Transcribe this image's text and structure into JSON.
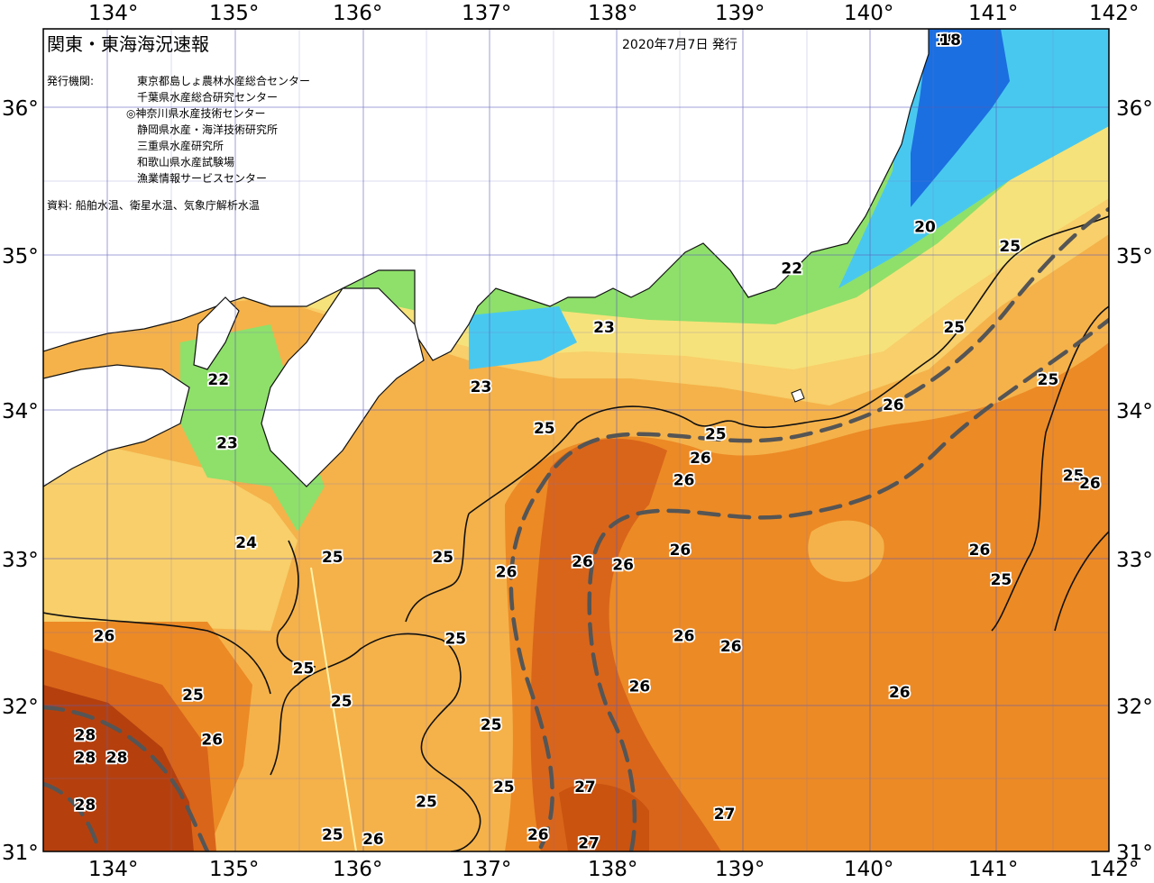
{
  "title": "関東・東海海況速報",
  "issue_date": "2020年7月7日 発行",
  "issuers_label": "発行機関:",
  "issuers": [
    "東京都島しょ農林水産総合センター",
    "千葉県水産総合研究センター",
    "◎神奈川県水産技術センター",
    "静岡県水産・海洋技術研究所",
    "三重県水産研究所",
    "和歌山県水産試験場",
    "漁業情報サービスセンター"
  ],
  "source": "資料: 船舶水温、衛星水温、気象庁解析水温",
  "lon_labels": [
    "134°",
    "135°",
    "136°",
    "137°",
    "138°",
    "139°",
    "140°",
    "141°",
    "142°"
  ],
  "lat_labels": [
    "36°",
    "35°",
    "34°",
    "33°",
    "32°",
    "31°"
  ],
  "colors": {
    "land": "#ffffff",
    "sst_18": "#1b6fe0",
    "sst_20": "#49c8ef",
    "sst_22": "#8ee06a",
    "sst_23": "#f6e27a",
    "sst_24": "#f8cf6a",
    "sst_25": "#f5b24a",
    "sst_26": "#ec8a25",
    "sst_27": "#d9651a",
    "sst_28": "#b5400e",
    "grid": "#5a5ab8",
    "kuroshio_axis": "#555555"
  },
  "isotherm_labels": [
    {
      "label": "18",
      "lon": 140.62,
      "lat": 36.5
    },
    {
      "label": "18",
      "lon": 140.65,
      "lat": 36.45
    },
    {
      "label": "20",
      "lon": 140.45,
      "lat": 35.18
    },
    {
      "label": "22",
      "lon": 139.4,
      "lat": 34.9
    },
    {
      "label": "22",
      "lon": 134.88,
      "lat": 34.15
    },
    {
      "label": "23",
      "lon": 137.92,
      "lat": 34.5
    },
    {
      "label": "23",
      "lon": 136.95,
      "lat": 34.1
    },
    {
      "label": "23",
      "lon": 134.95,
      "lat": 33.72
    },
    {
      "label": "24",
      "lon": 135.1,
      "lat": 33.05
    },
    {
      "label": "25",
      "lon": 141.12,
      "lat": 35.05
    },
    {
      "label": "25",
      "lon": 140.68,
      "lat": 34.5
    },
    {
      "label": "25",
      "lon": 141.42,
      "lat": 34.15
    },
    {
      "label": "25",
      "lon": 137.45,
      "lat": 33.82
    },
    {
      "label": "25",
      "lon": 138.8,
      "lat": 33.78
    },
    {
      "label": "25",
      "lon": 141.62,
      "lat": 33.5
    },
    {
      "label": "25",
      "lon": 135.78,
      "lat": 32.95
    },
    {
      "label": "25",
      "lon": 136.65,
      "lat": 32.95
    },
    {
      "label": "25",
      "lon": 141.05,
      "lat": 32.8
    },
    {
      "label": "25",
      "lon": 136.75,
      "lat": 32.4
    },
    {
      "label": "25",
      "lon": 135.55,
      "lat": 32.2
    },
    {
      "label": "25",
      "lon": 134.68,
      "lat": 32.02
    },
    {
      "label": "25",
      "lon": 135.85,
      "lat": 31.98
    },
    {
      "label": "25",
      "lon": 137.03,
      "lat": 31.82
    },
    {
      "label": "25",
      "lon": 137.13,
      "lat": 31.4
    },
    {
      "label": "25",
      "lon": 136.52,
      "lat": 31.3
    },
    {
      "label": "25",
      "lon": 135.78,
      "lat": 31.08
    },
    {
      "label": "26",
      "lon": 140.2,
      "lat": 33.98
    },
    {
      "label": "26",
      "lon": 138.68,
      "lat": 33.62
    },
    {
      "label": "26",
      "lon": 138.55,
      "lat": 33.47
    },
    {
      "label": "26",
      "lon": 141.75,
      "lat": 33.45
    },
    {
      "label": "26",
      "lon": 138.52,
      "lat": 33.0
    },
    {
      "label": "26",
      "lon": 137.75,
      "lat": 32.92
    },
    {
      "label": "26",
      "lon": 138.07,
      "lat": 32.9
    },
    {
      "label": "26",
      "lon": 137.15,
      "lat": 32.85
    },
    {
      "label": "26",
      "lon": 140.88,
      "lat": 33.0
    },
    {
      "label": "26",
      "lon": 133.98,
      "lat": 32.42
    },
    {
      "label": "26",
      "lon": 138.55,
      "lat": 32.42
    },
    {
      "label": "26",
      "lon": 138.92,
      "lat": 32.35
    },
    {
      "label": "26",
      "lon": 138.2,
      "lat": 32.08
    },
    {
      "label": "26",
      "lon": 140.25,
      "lat": 32.04
    },
    {
      "label": "26",
      "lon": 134.83,
      "lat": 31.72
    },
    {
      "label": "26",
      "lon": 137.4,
      "lat": 31.08
    },
    {
      "label": "26",
      "lon": 136.1,
      "lat": 31.05
    },
    {
      "label": "27",
      "lon": 137.77,
      "lat": 31.4
    },
    {
      "label": "27",
      "lon": 138.87,
      "lat": 31.22
    },
    {
      "label": "27",
      "lon": 137.8,
      "lat": 31.02
    },
    {
      "label": "28",
      "lon": 133.83,
      "lat": 31.75
    },
    {
      "label": "28",
      "lon": 133.83,
      "lat": 31.6
    },
    {
      "label": "28",
      "lon": 134.08,
      "lat": 31.6
    },
    {
      "label": "28",
      "lon": 133.83,
      "lat": 31.28
    }
  ]
}
